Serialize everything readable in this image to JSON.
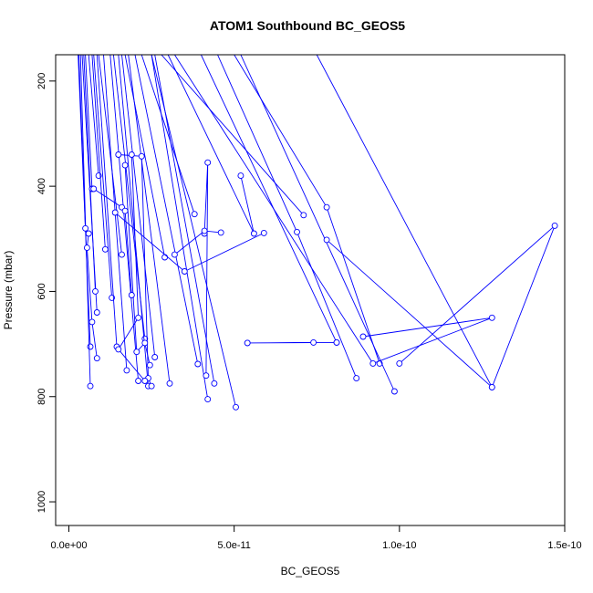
{
  "chart_data": {
    "type": "line",
    "title": "ATOM1 Southbound BC_GEOS5",
    "xlabel": "BC_GEOS5",
    "ylabel": "Pressure (mbar)",
    "x_ticks": [
      0,
      5e-11,
      1e-10,
      1.5e-10
    ],
    "x_tick_labels": [
      "0.0e+00",
      "5.0e-11",
      "1.0e-10",
      "1.5e-10"
    ],
    "y_ticks": [
      200,
      400,
      600,
      800,
      1000
    ],
    "y_tick_labels": [
      "200",
      "400",
      "600",
      "800",
      "1000"
    ],
    "xlim": [
      -4e-12,
      1.5e-10
    ],
    "ylim": [
      1045,
      150
    ],
    "y_reversed": true,
    "grid": false,
    "series_color": "#0000ff",
    "series": [
      {
        "x": [
          6.5e-12,
          2.8e-12
        ],
        "y": [
          705,
          150
        ]
      },
      {
        "x": [
          6.5e-12,
          3.5e-12
        ],
        "y": [
          780,
          150
        ]
      },
      {
        "x": [
          8.5e-12,
          4e-12
        ],
        "y": [
          640,
          150
        ]
      },
      {
        "x": [
          8e-12,
          4.5e-12
        ],
        "y": [
          600,
          150
        ]
      },
      {
        "x": [
          5e-12,
          3e-12
        ],
        "y": [
          480,
          150
        ]
      },
      {
        "x": [
          7e-12,
          5e-12
        ],
        "y": [
          405,
          150
        ]
      },
      {
        "x": [
          9e-12,
          6e-12
        ],
        "y": [
          380,
          150
        ]
      },
      {
        "x": [
          1.1e-11,
          7e-12
        ],
        "y": [
          520,
          150
        ]
      },
      {
        "x": [
          1.3e-11,
          7.5e-12
        ],
        "y": [
          612,
          150
        ]
      },
      {
        "x": [
          1.45e-11,
          8.5e-12
        ],
        "y": [
          705,
          150
        ]
      },
      {
        "x": [
          1.6e-11,
          9e-12
        ],
        "y": [
          530,
          150
        ]
      },
      {
        "x": [
          1.75e-11,
          1.05e-11
        ],
        "y": [
          750,
          150
        ]
      },
      {
        "x": [
          2.1e-11,
          1.25e-11
        ],
        "y": [
          770,
          150
        ]
      },
      {
        "x": [
          2.3e-11,
          1.35e-11
        ],
        "y": [
          690,
          150
        ]
      },
      {
        "x": [
          2.4e-11,
          1.5e-11
        ],
        "y": [
          780,
          150
        ]
      },
      {
        "x": [
          2.6e-11,
          1.6e-11
        ],
        "y": [
          725,
          150
        ]
      },
      {
        "x": [
          2.9e-11,
          1.7e-11
        ],
        "y": [
          535,
          150
        ]
      },
      {
        "x": [
          3.05e-11,
          1.8e-11
        ],
        "y": [
          775,
          150
        ]
      },
      {
        "x": [
          3.9e-11,
          2e-11
        ],
        "y": [
          738,
          150
        ]
      },
      {
        "x": [
          3.8e-11,
          2.2e-11
        ],
        "y": [
          453,
          150
        ]
      },
      {
        "x": [
          4.2e-11,
          2.5e-11
        ],
        "y": [
          805,
          150
        ]
      },
      {
        "x": [
          4.4e-11,
          2.6e-11
        ],
        "y": [
          775,
          150
        ]
      },
      {
        "x": [
          5.05e-11,
          2.5e-11
        ],
        "y": [
          820,
          150
        ]
      },
      {
        "x": [
          4.1e-11,
          4.2e-11,
          4.15e-11
        ],
        "y": [
          490,
          355,
          760
        ]
      },
      {
        "x": [
          5.2e-11,
          5.6e-11,
          3e-11
        ],
        "y": [
          380,
          490,
          150
        ]
      },
      {
        "x": [
          7.1e-11,
          2.8e-11
        ],
        "y": [
          455,
          150
        ]
      },
      {
        "x": [
          8.7e-11,
          6.9e-11,
          4.5e-11
        ],
        "y": [
          765,
          487,
          150
        ]
      },
      {
        "x": [
          8.1e-11,
          4e-11
        ],
        "y": [
          697,
          150
        ]
      },
      {
        "x": [
          9.4e-11,
          7.8e-11,
          5e-11
        ],
        "y": [
          737,
          440,
          150
        ]
      },
      {
        "x": [
          9.85e-11,
          5.2e-11
        ],
        "y": [
          790,
          150
        ]
      },
      {
        "x": [
          1.28e-10,
          7.8e-11
        ],
        "y": [
          782,
          502
        ]
      },
      {
        "x": [
          1e-10,
          1.47e-10,
          1.28e-10,
          7.5e-11
        ],
        "y": [
          737,
          475,
          782,
          150
        ]
      },
      {
        "x": [
          8.9e-11,
          1.28e-10,
          9.2e-11,
          3.2e-11
        ],
        "y": [
          686,
          650,
          737,
          150
        ]
      },
      {
        "x": [
          5.4e-11,
          7.4e-11,
          5.4e-11,
          8.1e-11
        ],
        "y": [
          698,
          697,
          698,
          697
        ]
      },
      {
        "x": [
          1.5e-11,
          2.2e-11,
          2.4e-11,
          2.5e-11
        ],
        "y": [
          340,
          343,
          765,
          780
        ]
      },
      {
        "x": [
          1.4e-11,
          3.5e-11,
          5.9e-11
        ],
        "y": [
          450,
          562,
          489
        ]
      },
      {
        "x": [
          3.2e-11,
          4.1e-11,
          4.6e-11
        ],
        "y": [
          530,
          485,
          488
        ]
      },
      {
        "x": [
          1.7e-11,
          2.05e-11,
          2.3e-11,
          2.45e-11
        ],
        "y": [
          360,
          715,
          698,
          740
        ]
      },
      {
        "x": [
          1.9e-11,
          2.1e-11,
          1.5e-11,
          2.3e-11
        ],
        "y": [
          340,
          650,
          710,
          770
        ]
      },
      {
        "x": [
          7.5e-12,
          1.6e-11,
          1.7e-11,
          1.9e-11
        ],
        "y": [
          405,
          440,
          447,
          607
        ]
      },
      {
        "x": [
          6e-12,
          5.5e-12,
          7e-12,
          8.5e-12
        ],
        "y": [
          490,
          517,
          658,
          727
        ]
      }
    ]
  }
}
